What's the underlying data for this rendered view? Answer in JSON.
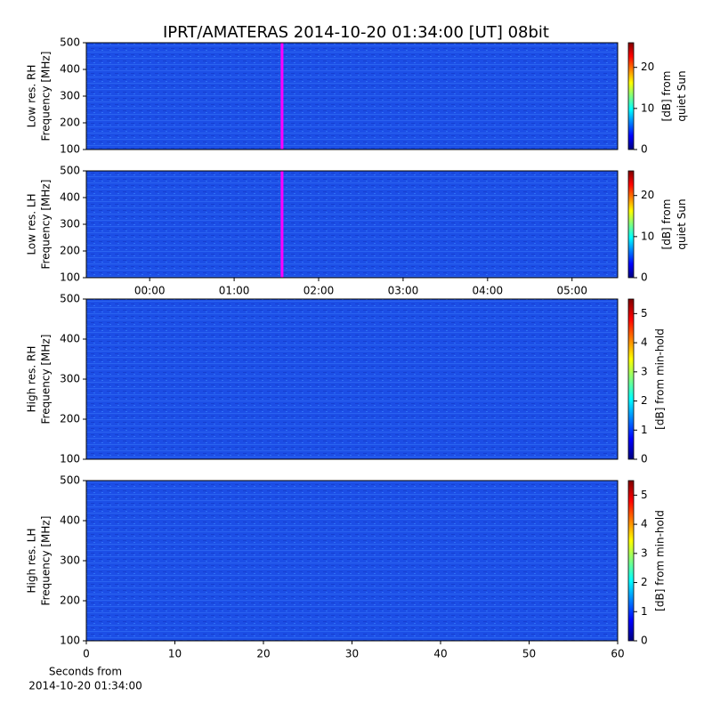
{
  "chart_data": [
    {
      "type": "heatmap",
      "title": "IPRT/AMATERAS 2014-10-20 01:34:00 [UT]   08bit",
      "ylabel": [
        "Low res. RH",
        "Frequency [MHz]"
      ],
      "xlim": [
        -0.75,
        5.54
      ],
      "ylim": [
        100,
        500
      ],
      "yticks": [
        100,
        200,
        300,
        400,
        500
      ],
      "marker": {
        "x": 1.567,
        "color": "#ff00ff"
      },
      "clim": [
        0,
        26
      ],
      "cticks": [
        0,
        10,
        20
      ],
      "colorbar_label": [
        "[dB] from",
        "quiet Sun"
      ]
    },
    {
      "type": "heatmap",
      "ylabel": [
        "Low res. LH",
        "Frequency [MHz]"
      ],
      "xlim": [
        -0.75,
        5.54
      ],
      "xticks": [
        {
          "value": 0,
          "label": "00:00"
        },
        {
          "value": 1,
          "label": "01:00"
        },
        {
          "value": 2,
          "label": "02:00"
        },
        {
          "value": 3,
          "label": "03:00"
        },
        {
          "value": 4,
          "label": "04:00"
        },
        {
          "value": 5,
          "label": "05:00"
        }
      ],
      "ylim": [
        100,
        500
      ],
      "yticks": [
        100,
        200,
        300,
        400,
        500
      ],
      "marker": {
        "x": 1.567,
        "color": "#ff00ff"
      },
      "clim": [
        0,
        26
      ],
      "cticks": [
        0,
        10,
        20
      ],
      "colorbar_label": [
        "[dB] from",
        "quiet Sun"
      ]
    },
    {
      "type": "heatmap",
      "ylabel": [
        "High res. RH",
        "Frequency [MHz]"
      ],
      "xlim": [
        0,
        60
      ],
      "ylim": [
        100,
        500
      ],
      "yticks": [
        100,
        200,
        300,
        400,
        500
      ],
      "clim": [
        0,
        5.5
      ],
      "cticks": [
        0,
        1,
        2,
        3,
        4,
        5
      ],
      "colorbar_label": [
        "[dB] from min-hold"
      ]
    },
    {
      "type": "heatmap",
      "ylabel": [
        "High res. LH",
        "Frequency [MHz]"
      ],
      "xlim": [
        0,
        60
      ],
      "xticks": [
        0,
        10,
        20,
        30,
        40,
        50,
        60
      ],
      "ylim": [
        100,
        500
      ],
      "yticks": [
        100,
        200,
        300,
        400,
        500
      ],
      "xlabel": [
        "Seconds from",
        "2014-10-20 01:34:00"
      ],
      "clim": [
        0,
        5.5
      ],
      "cticks": [
        0,
        1,
        2,
        3,
        4,
        5
      ],
      "colorbar_label": [
        "[dB] from min-hold"
      ]
    }
  ]
}
